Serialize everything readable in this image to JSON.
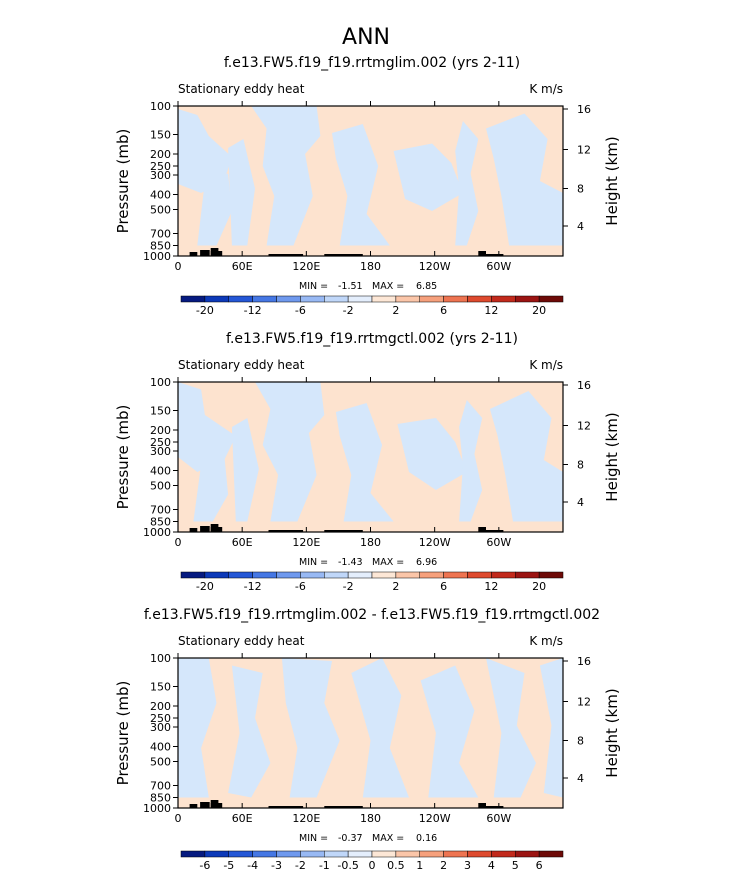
{
  "figure": {
    "title": "ANN"
  },
  "colors": {
    "positive_fill": "#fde3cf",
    "negative_fill": "#d5e7fb",
    "topography": "#000000",
    "frame": "#000000",
    "palette_20": [
      "#061a80",
      "#0c39b8",
      "#2457d6",
      "#4577e4",
      "#6f99ee",
      "#98b9f4",
      "#c0d7f9",
      "#e4eefc",
      "#fde7d6",
      "#fbc6a9",
      "#f6a07c",
      "#ee7451",
      "#de4a2e",
      "#c22a1c",
      "#9b1412",
      "#6e0a08"
    ],
    "palette_diff": [
      "#061a80",
      "#0c39b8",
      "#2457d6",
      "#4577e4",
      "#6f99ee",
      "#98b9f4",
      "#c0d7f9",
      "#e4eefc",
      "#fde7d6",
      "#fbc6a9",
      "#f6a07c",
      "#ee7451",
      "#de4a2e",
      "#c22a1c",
      "#9b1412",
      "#6e0a08"
    ]
  },
  "chart_data": [
    {
      "type": "heatmap",
      "title": "f.e13.FW5.f19_f19.rrtmglim.002 (yrs 2-11)",
      "variable_label": "Stationary eddy heat",
      "units_label": "K m/s",
      "ylabel": "Pressure (mb)",
      "ylabel_right": "Height (km)",
      "x_ticks": [
        "0",
        "60E",
        "120E",
        "180",
        "120W",
        "60W"
      ],
      "pressure_ticks": [
        "100",
        "150",
        "200",
        "250",
        "300",
        "400",
        "500",
        "700",
        "850",
        "1000"
      ],
      "height_ticks": [
        "16",
        "12",
        "8",
        "4"
      ],
      "min_label": "MIN =",
      "min_value": "-1.51",
      "max_label": "MAX =",
      "max_value": "6.85",
      "colorbar_labels": [
        "-20",
        "-12",
        "-6",
        "-2",
        "2",
        "6",
        "12",
        "20"
      ],
      "ylim": [
        1000,
        100
      ],
      "xlim": [
        0,
        360
      ]
    },
    {
      "type": "heatmap",
      "title": "f.e13.FW5.f19_f19.rrtmgctl.002 (yrs 2-11)",
      "variable_label": "Stationary eddy heat",
      "units_label": "K m/s",
      "ylabel": "Pressure (mb)",
      "ylabel_right": "Height (km)",
      "x_ticks": [
        "0",
        "60E",
        "120E",
        "180",
        "120W",
        "60W"
      ],
      "pressure_ticks": [
        "100",
        "150",
        "200",
        "250",
        "300",
        "400",
        "500",
        "700",
        "850",
        "1000"
      ],
      "height_ticks": [
        "16",
        "12",
        "8",
        "4"
      ],
      "min_label": "MIN =",
      "min_value": "-1.43",
      "max_label": "MAX =",
      "max_value": "6.96",
      "colorbar_labels": [
        "-20",
        "-12",
        "-6",
        "-2",
        "2",
        "6",
        "12",
        "20"
      ],
      "ylim": [
        1000,
        100
      ],
      "xlim": [
        0,
        360
      ]
    },
    {
      "type": "heatmap",
      "title": "f.e13.FW5.f19_f19.rrtmglim.002 - f.e13.FW5.f19_f19.rrtmgctl.002",
      "variable_label": "Stationary eddy heat",
      "units_label": "K m/s",
      "ylabel": "Pressure (mb)",
      "ylabel_right": "Height (km)",
      "x_ticks": [
        "0",
        "60E",
        "120E",
        "180",
        "120W",
        "60W"
      ],
      "pressure_ticks": [
        "100",
        "150",
        "200",
        "250",
        "300",
        "400",
        "500",
        "700",
        "850",
        "1000"
      ],
      "height_ticks": [
        "16",
        "12",
        "8",
        "4"
      ],
      "min_label": "MIN =",
      "min_value": "-0.37",
      "max_label": "MAX =",
      "max_value": "0.16",
      "colorbar_labels": [
        "-6",
        "-5",
        "-4",
        "-3",
        "-2",
        "-1",
        "-0.5",
        "0",
        "0.5",
        "1",
        "2",
        "3",
        "4",
        "5",
        "6"
      ],
      "ylim": [
        1000,
        100
      ],
      "xlim": [
        0,
        360
      ]
    }
  ]
}
